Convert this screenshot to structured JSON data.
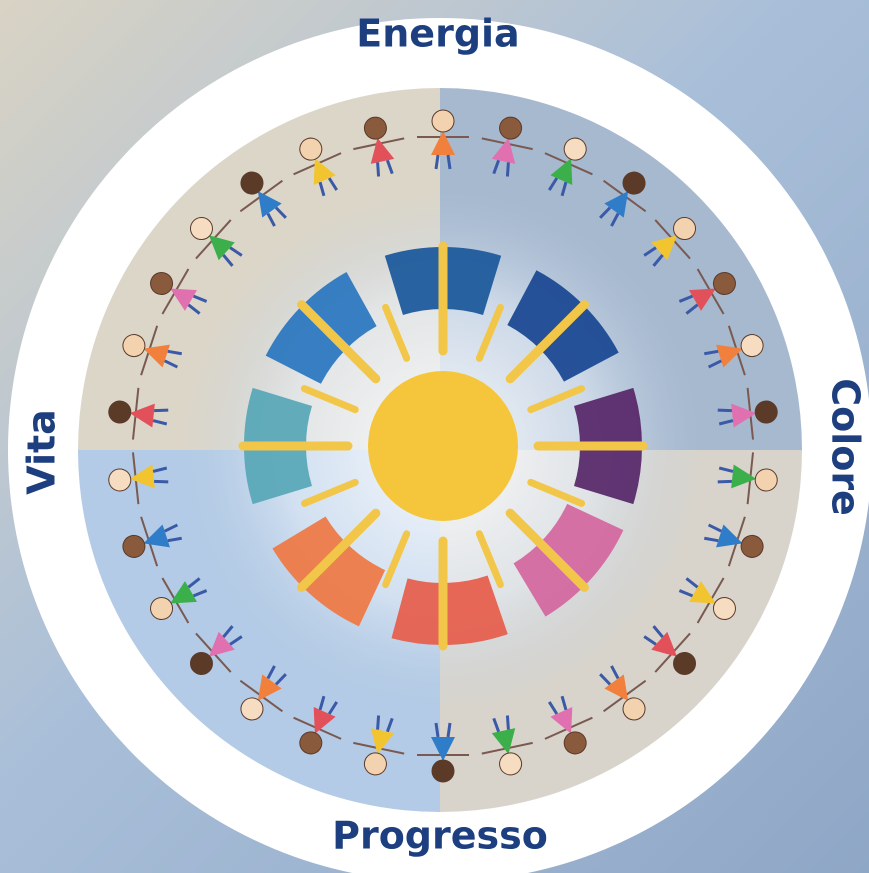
{
  "labels": {
    "top": "Energia",
    "right": "Colore",
    "bottom": "Progresso",
    "left": "Vita"
  }
}
